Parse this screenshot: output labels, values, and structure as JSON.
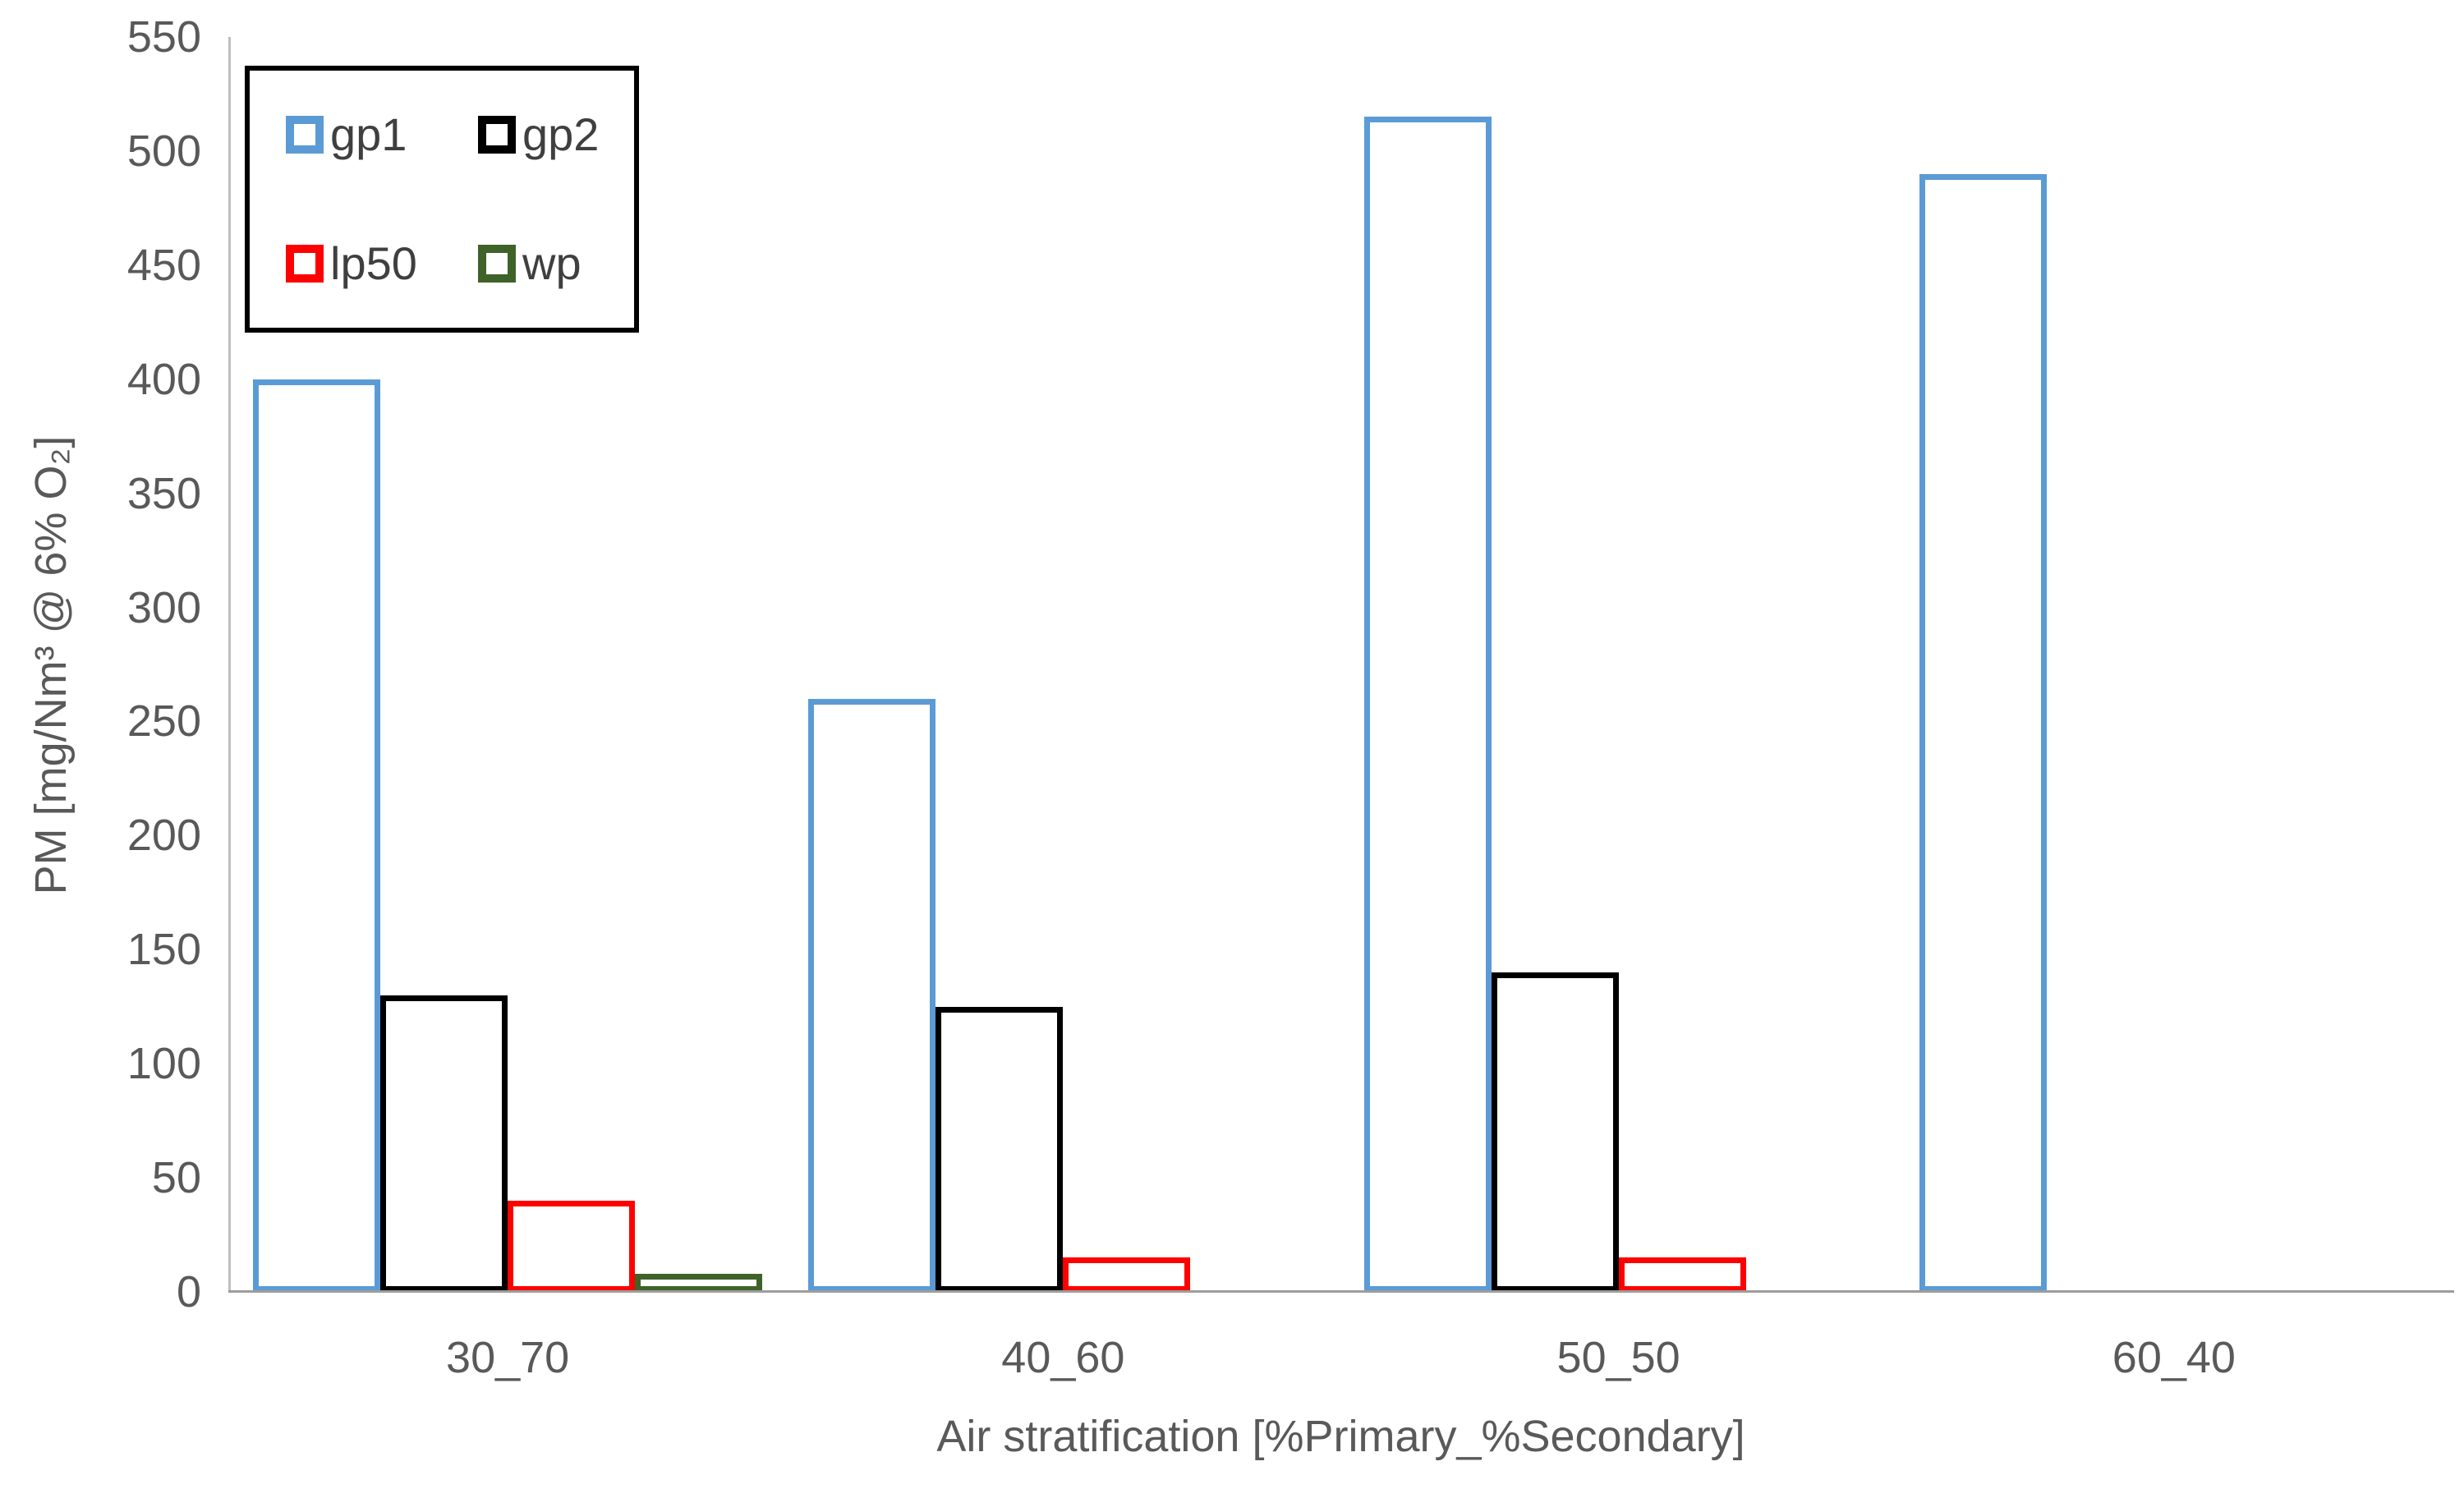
{
  "chart_data": {
    "type": "bar",
    "title": "",
    "xlabel": "Air stratification [%Primary_%Secondary]",
    "ylabel": "PM [mg/Nm³ @ 6% O₂]",
    "ylim": [
      0,
      550
    ],
    "ytick_step": 50,
    "grid": false,
    "legend_position": "top-left",
    "legend_columns": 2,
    "categories": [
      "30_70",
      "40_60",
      "50_50",
      "60_40"
    ],
    "series": [
      {
        "name": "gp1",
        "color": "#5B9BD5",
        "fill": "white-dotted",
        "values": [
          400,
          260,
          515,
          490
        ]
      },
      {
        "name": "gp2",
        "color": "#000000",
        "fill": "white-dotted",
        "values": [
          130,
          125,
          140,
          null
        ]
      },
      {
        "name": "lp50",
        "color": "#FF0000",
        "fill": "white-dotted",
        "values": [
          40,
          15,
          15,
          null
        ]
      },
      {
        "name": "wp",
        "color": "#3F6228",
        "fill": "white-dotted",
        "values": [
          8,
          null,
          null,
          null
        ]
      }
    ],
    "axis_colors": {
      "y_axis_line": "#BFBFBF",
      "x_axis_line": "#9D9D9D",
      "tick_text": "#595959"
    }
  }
}
